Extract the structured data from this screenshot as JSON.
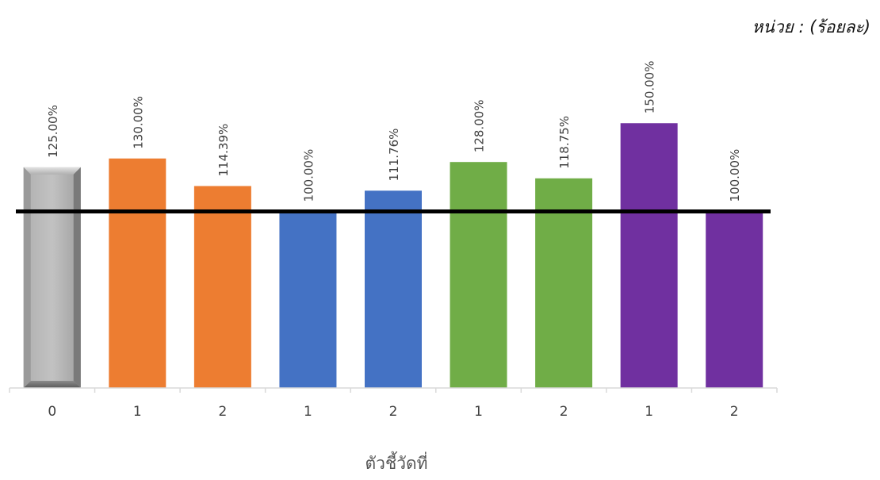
{
  "unit_label": "หน่วย : (ร้อยละ)",
  "chart_data": {
    "type": "bar",
    "categories": [
      "0",
      "1",
      "2",
      "1",
      "2",
      "1",
      "2",
      "1",
      "2"
    ],
    "values": [
      125.0,
      130.0,
      114.39,
      100.0,
      111.76,
      128.0,
      118.75,
      150.0,
      100.0
    ],
    "value_labels": [
      "125.00%",
      "130.00%",
      "114.39%",
      "100.00%",
      "111.76%",
      "128.00%",
      "118.75%",
      "150.00%",
      "100.00%"
    ],
    "bar_colors": [
      "#a6a6a6",
      "#ed7d31",
      "#ed7d31",
      "#4472c4",
      "#4472c4",
      "#70ad47",
      "#70ad47",
      "#7030a0",
      "#7030a0"
    ],
    "reference_line": {
      "value": 100,
      "color": "#000000"
    },
    "xlabel": "ตัวชี้วัดที่",
    "ylabel": "",
    "ylim": [
      0,
      210
    ],
    "grid": false,
    "legend": false
  }
}
